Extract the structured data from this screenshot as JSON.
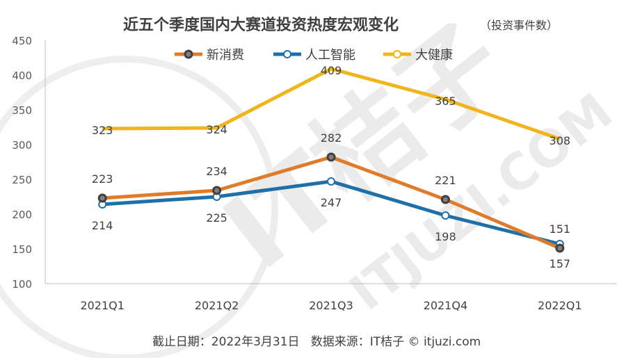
{
  "title": "近五个季度国内大赛道投资热度宏观变化",
  "subtitle": "（投资事件数）",
  "footer": "截止日期：2022年3月31日   数据来源：IT桔子 © itjuzi.com",
  "watermark": {
    "logo_text": "IT桔子",
    "url_text": "ITJUZI.COM"
  },
  "colors": {
    "新消费": "#e07b2a",
    "人工智能": "#1f6fa8",
    "大健康": "#f0b41c",
    "axis": "#bfbfbf",
    "text": "#404040"
  },
  "chart_data": {
    "type": "line",
    "categories": [
      "2021Q1",
      "2021Q2",
      "2021Q3",
      "2021Q4",
      "2022Q1"
    ],
    "ylim": [
      100,
      450
    ],
    "yticks": [
      100,
      150,
      200,
      250,
      300,
      350,
      400,
      450
    ],
    "grid": false,
    "legend": "top-center",
    "series": [
      {
        "name": "新消费",
        "values": [
          223,
          234,
          282,
          221,
          151
        ]
      },
      {
        "name": "人工智能",
        "values": [
          214,
          225,
          247,
          198,
          157
        ]
      },
      {
        "name": "大健康",
        "values": [
          323,
          324,
          409,
          365,
          308
        ]
      }
    ]
  }
}
